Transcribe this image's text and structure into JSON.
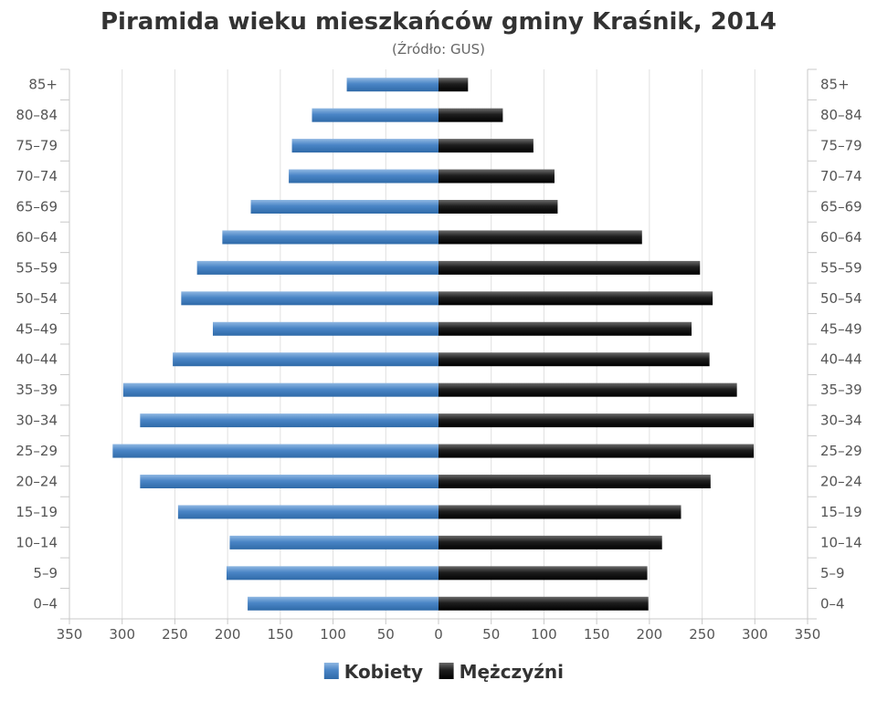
{
  "chart_data": {
    "type": "bar",
    "orientation": "horizontal-pyramid",
    "title": "Piramida wieku mieszkańców gminy Kraśnik, 2014",
    "subtitle": "(Źródło: GUS)",
    "categories": [
      "85+",
      "80–84",
      "75–79",
      "70–74",
      "65–69",
      "60–64",
      "55–59",
      "50–54",
      "45–49",
      "40–44",
      "35–39",
      "30–34",
      "25–29",
      "20–24",
      "15–19",
      "10–14",
      "5–9",
      "0–4"
    ],
    "series": [
      {
        "name": "Kobiety",
        "side": "left",
        "color": "#3a79bd",
        "values": [
          87,
          120,
          139,
          142,
          178,
          205,
          229,
          244,
          214,
          252,
          299,
          283,
          309,
          283,
          247,
          198,
          201,
          181
        ]
      },
      {
        "name": "Mężczyźni",
        "side": "right",
        "color": "#1a1a1a",
        "values": [
          28,
          61,
          90,
          110,
          113,
          193,
          248,
          260,
          240,
          257,
          283,
          299,
          299,
          258,
          230,
          212,
          198,
          199
        ]
      }
    ],
    "x_ticks": [
      "350",
      "300",
      "250",
      "200",
      "150",
      "100",
      "50",
      "0",
      "50",
      "100",
      "150",
      "200",
      "250",
      "300",
      "350"
    ],
    "xlim": [
      -350,
      350
    ],
    "grid": true,
    "legend": "bottom-center"
  }
}
